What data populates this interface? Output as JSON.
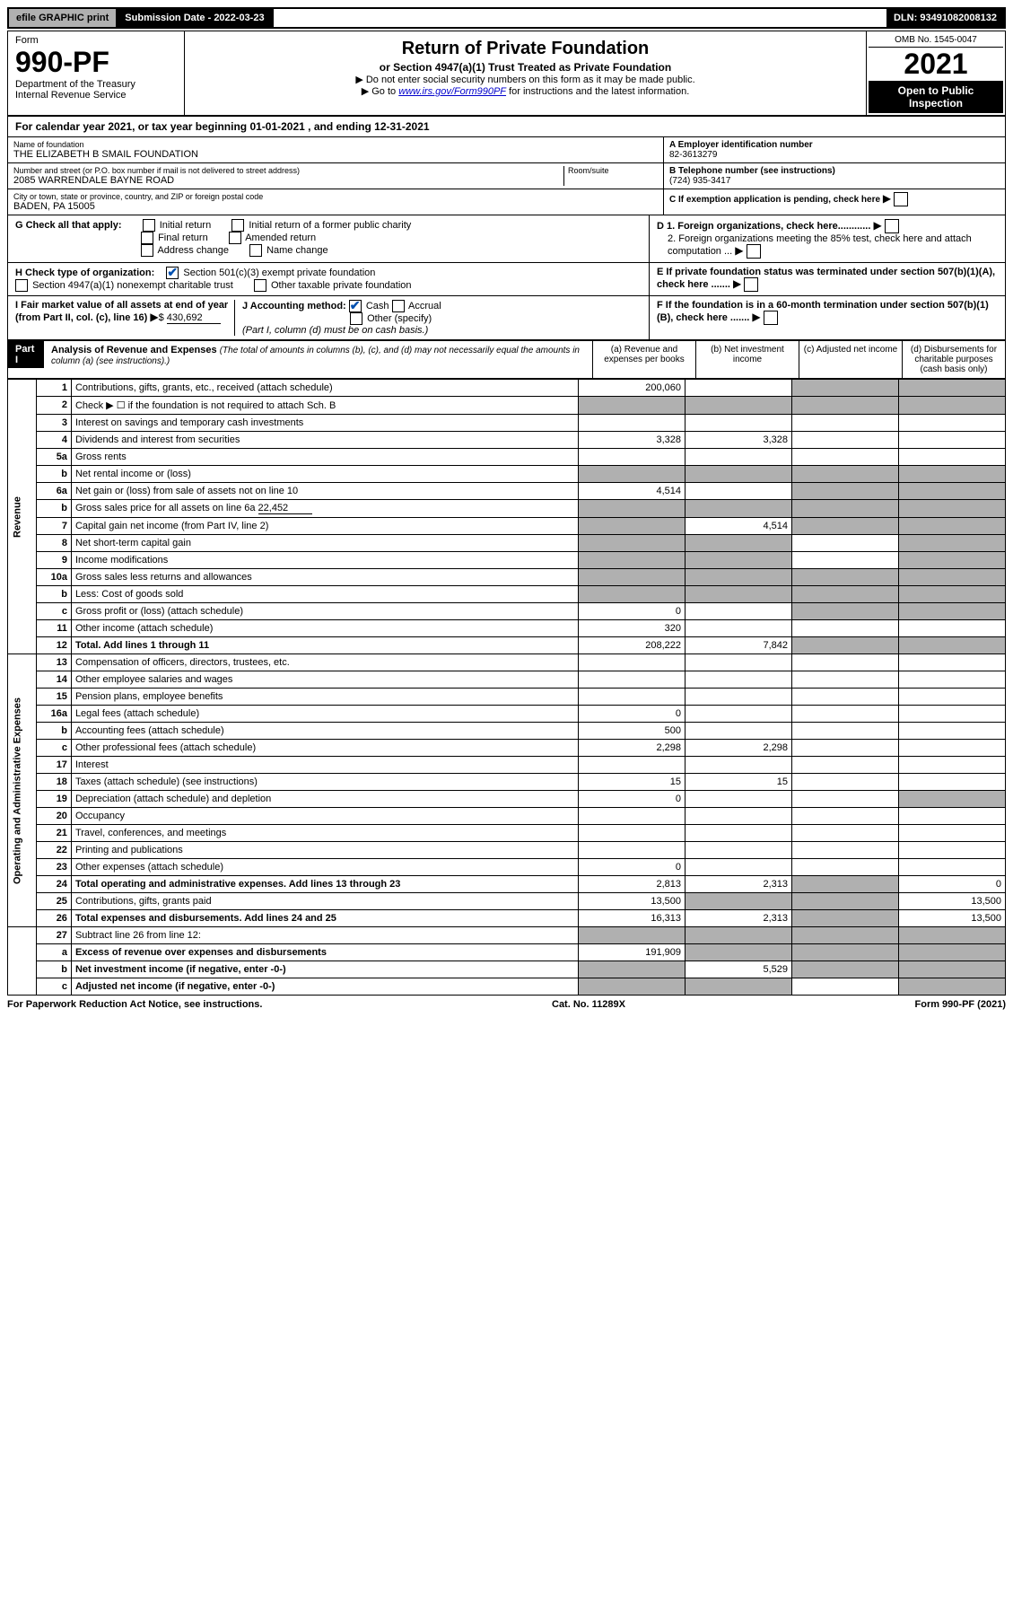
{
  "top": {
    "efile": "efile GRAPHIC print",
    "sub_date_label": "Submission Date - 2022-03-23",
    "dln": "DLN: 93491082008132"
  },
  "header": {
    "form_label": "Form",
    "form_num": "990-PF",
    "dept": "Department of the Treasury",
    "irs": "Internal Revenue Service",
    "title": "Return of Private Foundation",
    "subtitle": "or Section 4947(a)(1) Trust Treated as Private Foundation",
    "inst1": "▶ Do not enter social security numbers on this form as it may be made public.",
    "inst2_pre": "▶ Go to ",
    "inst2_link": "www.irs.gov/Form990PF",
    "inst2_post": " for instructions and the latest information.",
    "omb": "OMB No. 1545-0047",
    "year": "2021",
    "open": "Open to Public Inspection"
  },
  "cal_year": "For calendar year 2021, or tax year beginning 01-01-2021          , and ending 12-31-2021",
  "ident": {
    "name_label": "Name of foundation",
    "name": "THE ELIZABETH B SMAIL FOUNDATION",
    "addr_label": "Number and street (or P.O. box number if mail is not delivered to street address)",
    "addr": "2085 WARRENDALE BAYNE ROAD",
    "room_label": "Room/suite",
    "city_label": "City or town, state or province, country, and ZIP or foreign postal code",
    "city": "BADEN, PA  15005",
    "a_label": "A Employer identification number",
    "a_val": "82-3613279",
    "b_label": "B Telephone number (see instructions)",
    "b_val": "(724) 935-3417",
    "c_label": "C If exemption application is pending, check here",
    "d1": "D 1. Foreign organizations, check here............",
    "d2": "2. Foreign organizations meeting the 85% test, check here and attach computation ...",
    "e": "E  If private foundation status was terminated under section 507(b)(1)(A), check here .......",
    "f": "F  If the foundation is in a 60-month termination under section 507(b)(1)(B), check here .......",
    "g_label": "G Check all that apply:",
    "g_opts": [
      "Initial return",
      "Initial return of a former public charity",
      "Final return",
      "Amended return",
      "Address change",
      "Name change"
    ],
    "h_label": "H Check type of organization:",
    "h1": "Section 501(c)(3) exempt private foundation",
    "h2": "Section 4947(a)(1) nonexempt charitable trust",
    "h3": "Other taxable private foundation",
    "i_label": "I Fair market value of all assets at end of year (from Part II, col. (c), line 16)",
    "i_val": "430,692",
    "j_label": "J Accounting method:",
    "j_opts": [
      "Cash",
      "Accrual",
      "Other (specify)"
    ],
    "j_note": "(Part I, column (d) must be on cash basis.)"
  },
  "part1": {
    "label": "Part I",
    "title": "Analysis of Revenue and Expenses",
    "note": "(The total of amounts in columns (b), (c), and (d) may not necessarily equal the amounts in column (a) (see instructions).)",
    "col_a": "(a)   Revenue and expenses per books",
    "col_b": "(b)   Net investment income",
    "col_c": "(c)   Adjusted net income",
    "col_d": "(d)  Disbursements for charitable purposes (cash basis only)"
  },
  "side_rev": "Revenue",
  "side_exp": "Operating and Administrative Expenses",
  "rows": {
    "r1": {
      "n": "1",
      "l": "Contributions, gifts, grants, etc., received (attach schedule)",
      "a": "200,060"
    },
    "r2": {
      "n": "2",
      "l": "Check ▶ ☐ if the foundation is not required to attach Sch. B"
    },
    "r3": {
      "n": "3",
      "l": "Interest on savings and temporary cash investments"
    },
    "r4": {
      "n": "4",
      "l": "Dividends and interest from securities",
      "a": "3,328",
      "b": "3,328"
    },
    "r5a": {
      "n": "5a",
      "l": "Gross rents"
    },
    "r5b": {
      "n": "b",
      "l": "Net rental income or (loss)"
    },
    "r6a": {
      "n": "6a",
      "l": "Net gain or (loss) from sale of assets not on line 10",
      "a": "4,514"
    },
    "r6b": {
      "n": "b",
      "l": "Gross sales price for all assets on line 6a",
      "u": "22,452"
    },
    "r7": {
      "n": "7",
      "l": "Capital gain net income (from Part IV, line 2)",
      "b": "4,514"
    },
    "r8": {
      "n": "8",
      "l": "Net short-term capital gain"
    },
    "r9": {
      "n": "9",
      "l": "Income modifications"
    },
    "r10a": {
      "n": "10a",
      "l": "Gross sales less returns and allowances"
    },
    "r10b": {
      "n": "b",
      "l": "Less: Cost of goods sold"
    },
    "r10c": {
      "n": "c",
      "l": "Gross profit or (loss) (attach schedule)",
      "a": "0"
    },
    "r11": {
      "n": "11",
      "l": "Other income (attach schedule)",
      "a": "320"
    },
    "r12": {
      "n": "12",
      "l": "Total. Add lines 1 through 11",
      "a": "208,222",
      "b": "7,842",
      "bold": true
    },
    "r13": {
      "n": "13",
      "l": "Compensation of officers, directors, trustees, etc."
    },
    "r14": {
      "n": "14",
      "l": "Other employee salaries and wages"
    },
    "r15": {
      "n": "15",
      "l": "Pension plans, employee benefits"
    },
    "r16a": {
      "n": "16a",
      "l": "Legal fees (attach schedule)",
      "a": "0"
    },
    "r16b": {
      "n": "b",
      "l": "Accounting fees (attach schedule)",
      "a": "500"
    },
    "r16c": {
      "n": "c",
      "l": "Other professional fees (attach schedule)",
      "a": "2,298",
      "b": "2,298"
    },
    "r17": {
      "n": "17",
      "l": "Interest"
    },
    "r18": {
      "n": "18",
      "l": "Taxes (attach schedule) (see instructions)",
      "a": "15",
      "b": "15"
    },
    "r19": {
      "n": "19",
      "l": "Depreciation (attach schedule) and depletion",
      "a": "0"
    },
    "r20": {
      "n": "20",
      "l": "Occupancy"
    },
    "r21": {
      "n": "21",
      "l": "Travel, conferences, and meetings"
    },
    "r22": {
      "n": "22",
      "l": "Printing and publications"
    },
    "r23": {
      "n": "23",
      "l": "Other expenses (attach schedule)",
      "a": "0"
    },
    "r24": {
      "n": "24",
      "l": "Total operating and administrative expenses. Add lines 13 through 23",
      "a": "2,813",
      "b": "2,313",
      "d": "0",
      "bold": true
    },
    "r25": {
      "n": "25",
      "l": "Contributions, gifts, grants paid",
      "a": "13,500",
      "d": "13,500"
    },
    "r26": {
      "n": "26",
      "l": "Total expenses and disbursements. Add lines 24 and 25",
      "a": "16,313",
      "b": "2,313",
      "d": "13,500",
      "bold": true
    },
    "r27": {
      "n": "27",
      "l": "Subtract line 26 from line 12:"
    },
    "r27a": {
      "n": "a",
      "l": "Excess of revenue over expenses and disbursements",
      "a": "191,909",
      "bold": true
    },
    "r27b": {
      "n": "b",
      "l": "Net investment income (if negative, enter -0-)",
      "b": "5,529",
      "bold": true
    },
    "r27c": {
      "n": "c",
      "l": "Adjusted net income (if negative, enter -0-)",
      "bold": true
    }
  },
  "footer": {
    "left": "For Paperwork Reduction Act Notice, see instructions.",
    "mid": "Cat. No. 11289X",
    "right": "Form 990-PF (2021)"
  }
}
